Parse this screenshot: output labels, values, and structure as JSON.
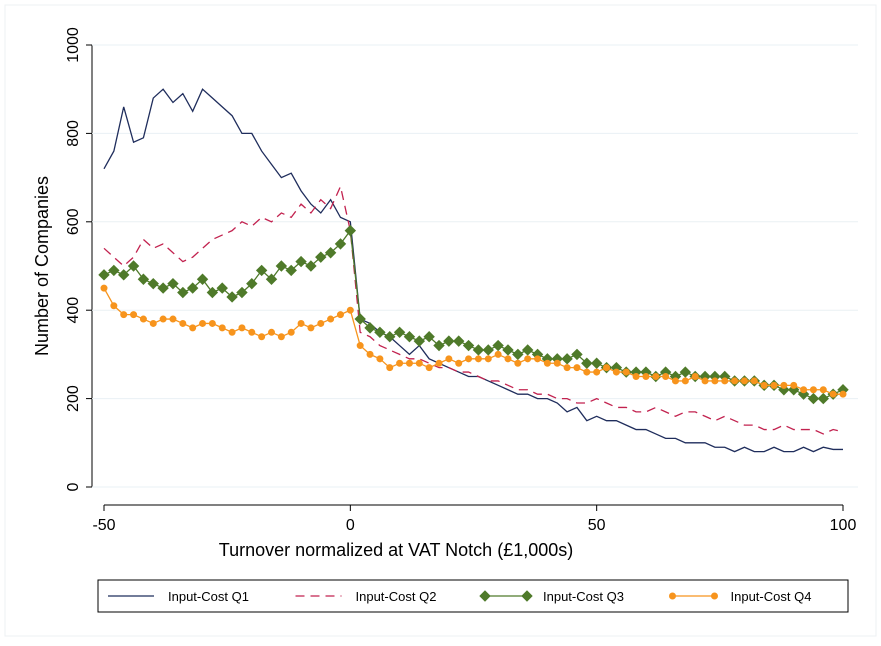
{
  "chart_data": {
    "type": "line",
    "xlabel": "Turnover normalized at VAT Notch (£1,000s)",
    "ylabel": "Number of Companies",
    "x": [
      -50,
      -48,
      -46,
      -44,
      -42,
      -40,
      -38,
      -36,
      -34,
      -32,
      -30,
      -28,
      -26,
      -24,
      -22,
      -20,
      -18,
      -16,
      -14,
      -12,
      -10,
      -8,
      -6,
      -4,
      -2,
      0,
      2,
      4,
      6,
      8,
      10,
      12,
      14,
      16,
      18,
      20,
      22,
      24,
      26,
      28,
      30,
      32,
      34,
      36,
      38,
      40,
      42,
      44,
      46,
      48,
      50,
      52,
      54,
      56,
      58,
      60,
      62,
      64,
      66,
      68,
      70,
      72,
      74,
      76,
      78,
      80,
      82,
      84,
      86,
      88,
      90,
      92,
      94,
      96,
      98,
      100
    ],
    "xlim": [
      -50,
      100
    ],
    "xticks": [
      -50,
      0,
      50,
      100
    ],
    "ylim": [
      0,
      1000
    ],
    "yticks": [
      0,
      200,
      400,
      600,
      800,
      1000
    ],
    "grid": true,
    "legend": "bottom",
    "series": [
      {
        "name": "Input-Cost Q1",
        "color": "#1f2d5c",
        "dash": "solid",
        "marker": "none",
        "values": [
          720,
          760,
          860,
          780,
          790,
          880,
          900,
          870,
          890,
          850,
          900,
          880,
          860,
          840,
          800,
          800,
          760,
          730,
          700,
          710,
          670,
          640,
          620,
          650,
          610,
          600,
          380,
          370,
          350,
          340,
          320,
          300,
          320,
          290,
          280,
          270,
          260,
          250,
          250,
          240,
          230,
          220,
          210,
          210,
          200,
          200,
          190,
          170,
          180,
          150,
          160,
          150,
          150,
          140,
          130,
          130,
          120,
          110,
          110,
          100,
          100,
          100,
          90,
          90,
          80,
          90,
          80,
          80,
          90,
          80,
          80,
          90,
          80,
          90,
          85,
          85
        ]
      },
      {
        "name": "Input-Cost Q2",
        "color": "#c2224f",
        "dash": "dashed",
        "marker": "none",
        "values": [
          540,
          520,
          500,
          520,
          560,
          540,
          550,
          530,
          510,
          520,
          540,
          560,
          570,
          580,
          600,
          590,
          610,
          600,
          620,
          610,
          640,
          620,
          650,
          630,
          680,
          580,
          350,
          340,
          320,
          310,
          300,
          290,
          290,
          280,
          270,
          270,
          260,
          260,
          250,
          240,
          240,
          230,
          220,
          220,
          210,
          210,
          200,
          200,
          190,
          190,
          200,
          190,
          180,
          180,
          170,
          170,
          180,
          170,
          160,
          170,
          170,
          160,
          150,
          160,
          150,
          140,
          140,
          130,
          130,
          140,
          130,
          130,
          130,
          120,
          130,
          125
        ]
      },
      {
        "name": "Input-Cost Q3",
        "color": "#4f7a2a",
        "dash": "solid",
        "marker": "diamond",
        "values": [
          480,
          490,
          480,
          500,
          470,
          460,
          450,
          460,
          440,
          450,
          470,
          440,
          450,
          430,
          440,
          460,
          490,
          470,
          500,
          490,
          510,
          500,
          520,
          530,
          550,
          580,
          380,
          360,
          350,
          340,
          350,
          340,
          330,
          340,
          320,
          330,
          330,
          320,
          310,
          310,
          320,
          310,
          300,
          310,
          300,
          290,
          290,
          290,
          300,
          280,
          280,
          270,
          270,
          260,
          260,
          260,
          250,
          260,
          250,
          260,
          250,
          250,
          250,
          250,
          240,
          240,
          240,
          230,
          230,
          220,
          220,
          210,
          200,
          200,
          210,
          220
        ]
      },
      {
        "name": "Input-Cost Q4",
        "color": "#f7941d",
        "dash": "solid",
        "marker": "circle",
        "values": [
          450,
          410,
          390,
          390,
          380,
          370,
          380,
          380,
          370,
          360,
          370,
          370,
          360,
          350,
          360,
          350,
          340,
          350,
          340,
          350,
          370,
          360,
          370,
          380,
          390,
          400,
          320,
          300,
          290,
          270,
          280,
          280,
          280,
          270,
          280,
          290,
          280,
          290,
          290,
          290,
          300,
          290,
          280,
          290,
          290,
          280,
          280,
          270,
          270,
          260,
          260,
          270,
          260,
          260,
          250,
          250,
          250,
          250,
          240,
          240,
          250,
          240,
          240,
          240,
          240,
          240,
          240,
          230,
          230,
          230,
          230,
          220,
          220,
          220,
          210,
          210
        ]
      }
    ]
  }
}
